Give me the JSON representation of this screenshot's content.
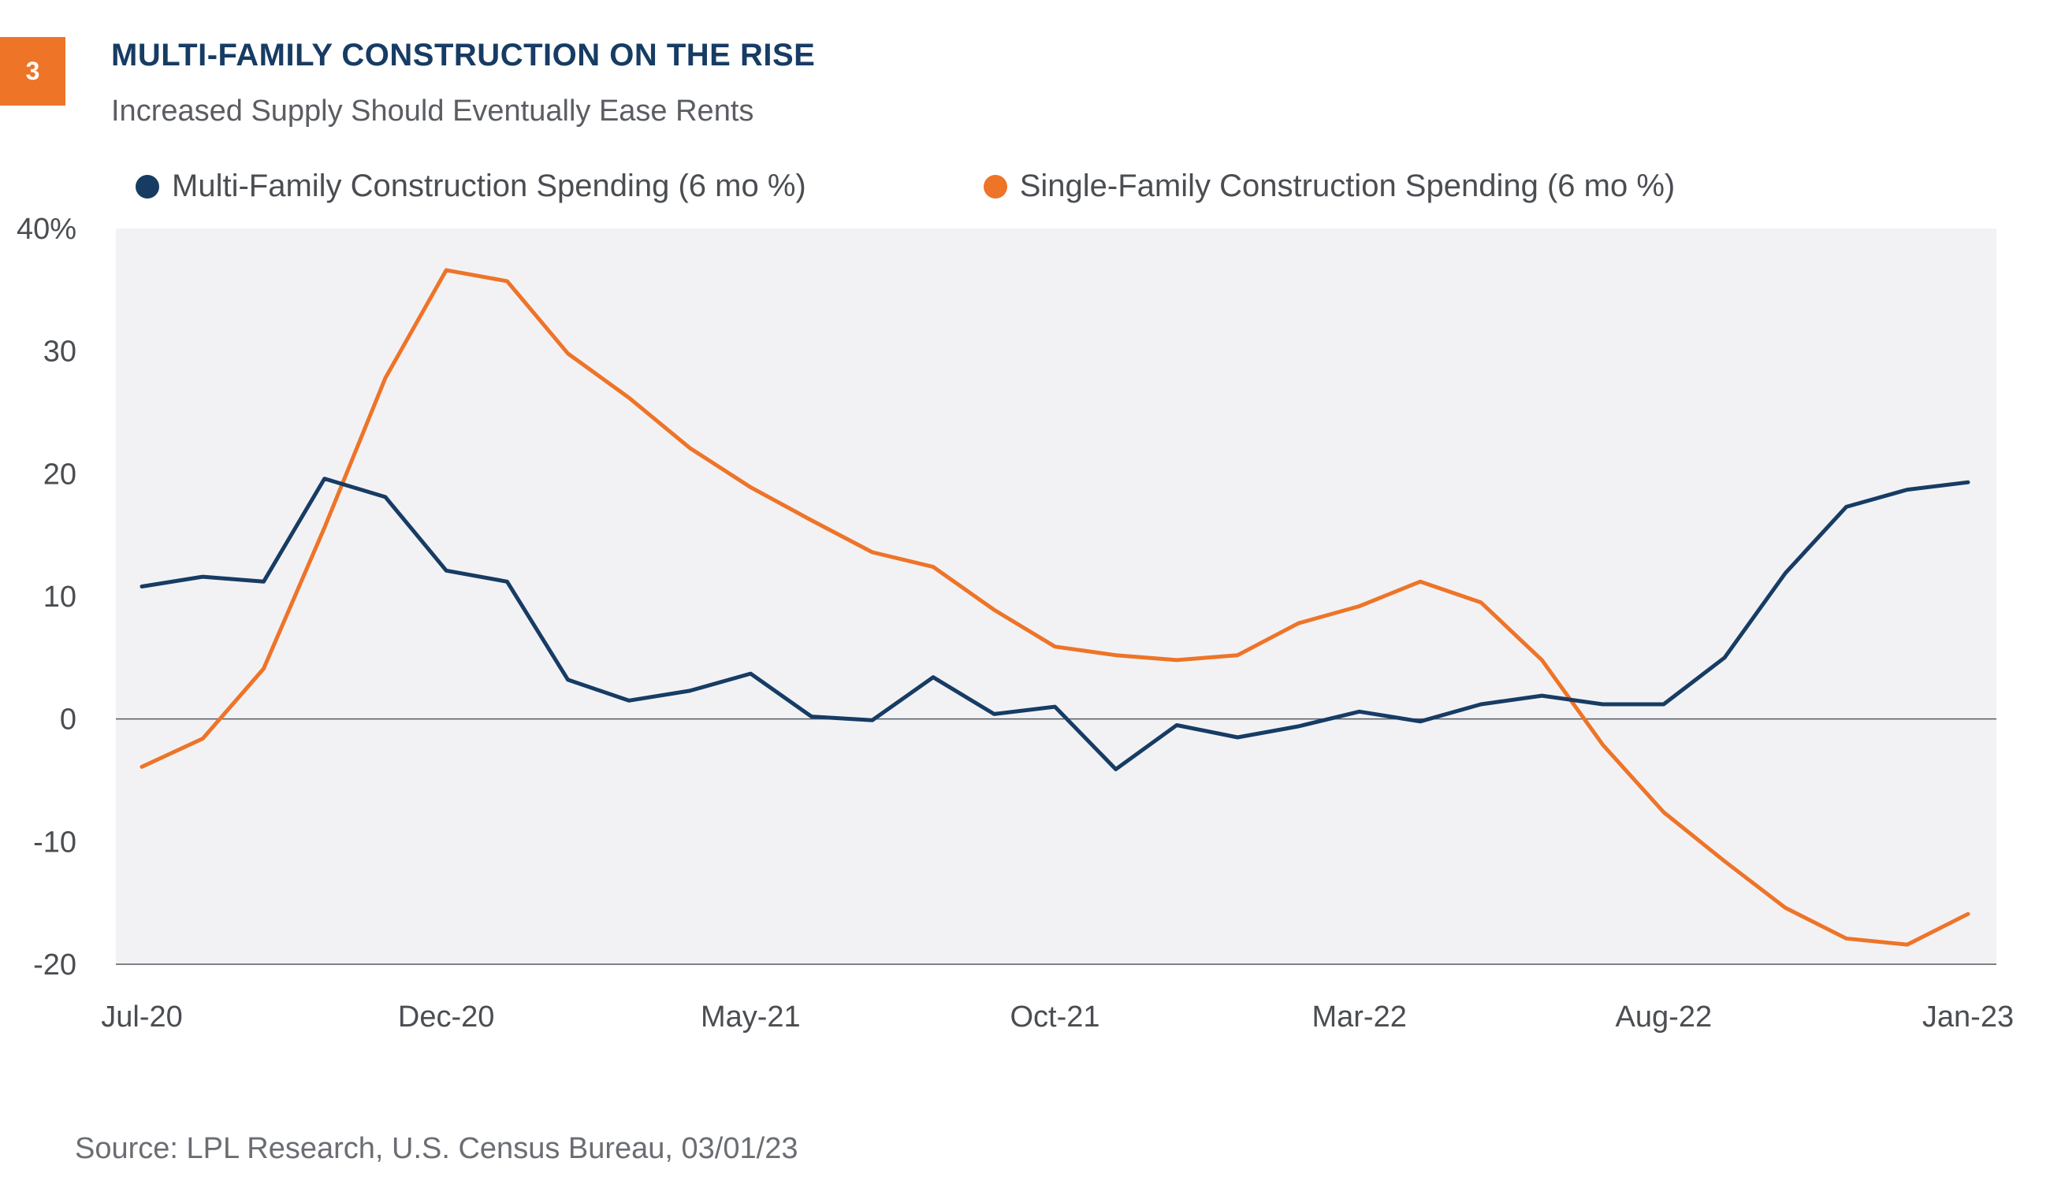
{
  "figure": {
    "badge": "3",
    "title": "MULTI-FAMILY CONSTRUCTION ON THE RISE",
    "subtitle": "Increased Supply Should Eventually Ease Rents",
    "source": "Source: LPL Research, U.S. Census Bureau, 03/01/23"
  },
  "colors": {
    "multi": "#173c64",
    "single": "#ee7428",
    "plot_bg": "#f2f2f5",
    "badge": "#ee7428"
  },
  "chart_data": {
    "type": "line",
    "title": "MULTI-FAMILY CONSTRUCTION ON THE RISE",
    "subtitle": "Increased Supply Should Eventually Ease Rents",
    "x": [
      "Jul-20",
      "Aug-20",
      "Sep-20",
      "Oct-20",
      "Nov-20",
      "Dec-20",
      "Jan-21",
      "Feb-21",
      "Mar-21",
      "Apr-21",
      "May-21",
      "Jun-21",
      "Jul-21",
      "Aug-21",
      "Sep-21",
      "Oct-21",
      "Nov-21",
      "Dec-21",
      "Jan-22",
      "Feb-22",
      "Mar-22",
      "Apr-22",
      "May-22",
      "Jun-22",
      "Jul-22",
      "Aug-22",
      "Sep-22",
      "Oct-22",
      "Nov-22",
      "Dec-22",
      "Jan-23"
    ],
    "x_tick_labels": [
      "Jul-20",
      "Dec-20",
      "May-21",
      "Oct-21",
      "Mar-22",
      "Aug-22",
      "Jan-23"
    ],
    "y_tick_labels": [
      "40%",
      "30",
      "20",
      "10",
      "0",
      "-10",
      "-20"
    ],
    "y_ticks": [
      40,
      30,
      20,
      10,
      0,
      -10,
      -20
    ],
    "ylim": [
      -20,
      40
    ],
    "legend_position": "top",
    "zero_line": true,
    "series": [
      {
        "name": "Multi-Family Construction Spending (6 mo %)",
        "color": "#173c64",
        "values": [
          10.8,
          11.6,
          11.2,
          19.6,
          18.1,
          12.1,
          11.2,
          3.2,
          1.5,
          2.3,
          3.7,
          0.2,
          -0.1,
          3.4,
          0.4,
          1.0,
          -4.1,
          -0.5,
          -1.5,
          -0.6,
          0.6,
          -0.2,
          1.2,
          1.9,
          1.2,
          1.2,
          5.0,
          11.9,
          17.3,
          18.7,
          19.3
        ]
      },
      {
        "name": "Single-Family Construction Spending (6 mo %)",
        "color": "#ee7428",
        "values": [
          -3.9,
          -1.6,
          4.1,
          15.6,
          27.8,
          36.6,
          35.7,
          29.8,
          26.2,
          22.1,
          18.9,
          16.2,
          13.6,
          12.4,
          8.9,
          5.9,
          5.2,
          4.8,
          5.2,
          7.8,
          9.2,
          11.2,
          9.5,
          4.8,
          -2.1,
          -7.6,
          -11.6,
          -15.4,
          -17.9,
          -18.4,
          -15.9
        ]
      }
    ]
  }
}
